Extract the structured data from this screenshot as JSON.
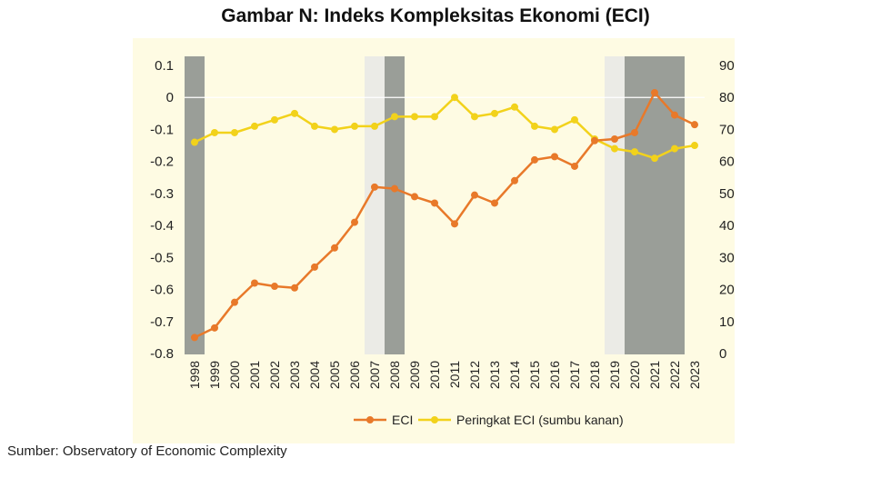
{
  "title": "Gambar N: Indeks Kompleksitas Ekonomi (ECI)",
  "source": "Sumber: Observatory of Economic Complexity",
  "colors": {
    "eci": "#e8792a",
    "rank": "#f2d21b",
    "recession_dark": "#9a9e98",
    "recession_light": "#ebebe6",
    "panel_bg": "#fefbe3"
  },
  "chart_data": {
    "type": "line",
    "title": "Gambar N: Indeks Kompleksitas Ekonomi (ECI)",
    "x": [
      "1998",
      "1999",
      "2000",
      "2001",
      "2002",
      "2003",
      "2004",
      "2005",
      "2006",
      "2007",
      "2008",
      "2009",
      "2010",
      "2011",
      "2012",
      "2013",
      "2014",
      "2015",
      "2016",
      "2017",
      "2018",
      "2019",
      "2020",
      "2021",
      "2022",
      "2023"
    ],
    "series": [
      {
        "name": "ECI",
        "axis": "left",
        "values": [
          -0.75,
          -0.72,
          -0.64,
          -0.58,
          -0.59,
          -0.595,
          -0.53,
          -0.47,
          -0.39,
          -0.28,
          -0.285,
          -0.31,
          -0.33,
          -0.395,
          -0.305,
          -0.33,
          -0.26,
          -0.195,
          -0.185,
          -0.215,
          -0.135,
          -0.13,
          -0.11,
          0.015,
          -0.055,
          -0.085
        ]
      },
      {
        "name": "Peringkat ECI (sumbu kanan)",
        "axis": "right",
        "values": [
          66,
          69,
          69,
          71,
          73,
          75,
          71,
          70,
          71,
          71,
          74,
          74,
          74,
          80,
          74,
          75,
          77,
          71,
          70,
          73,
          67,
          64,
          63,
          61,
          64,
          65
        ]
      }
    ],
    "yleft": {
      "ticks": [
        "0.1",
        "0",
        "-0.1",
        "-0.2",
        "-0.3",
        "-0.4",
        "-0.5",
        "-0.6",
        "-0.7",
        "-0.8"
      ],
      "range": [
        -0.8,
        0.1
      ]
    },
    "yright": {
      "ticks": [
        "90",
        "80",
        "70",
        "60",
        "50",
        "40",
        "30",
        "20",
        "10",
        "0"
      ],
      "range": [
        0,
        90
      ]
    },
    "shaded_periods": [
      {
        "from": "1998",
        "to": "1998",
        "shade": "dark"
      },
      {
        "from": "2007",
        "to": "2007",
        "shade": "light"
      },
      {
        "from": "2008",
        "to": "2008",
        "shade": "dark"
      },
      {
        "from": "2019",
        "to": "2019",
        "shade": "light"
      },
      {
        "from": "2020",
        "to": "2022",
        "shade": "dark"
      }
    ],
    "legend": [
      "ECI",
      "Peringkat ECI (sumbu kanan)"
    ],
    "legend_position": "bottom"
  }
}
